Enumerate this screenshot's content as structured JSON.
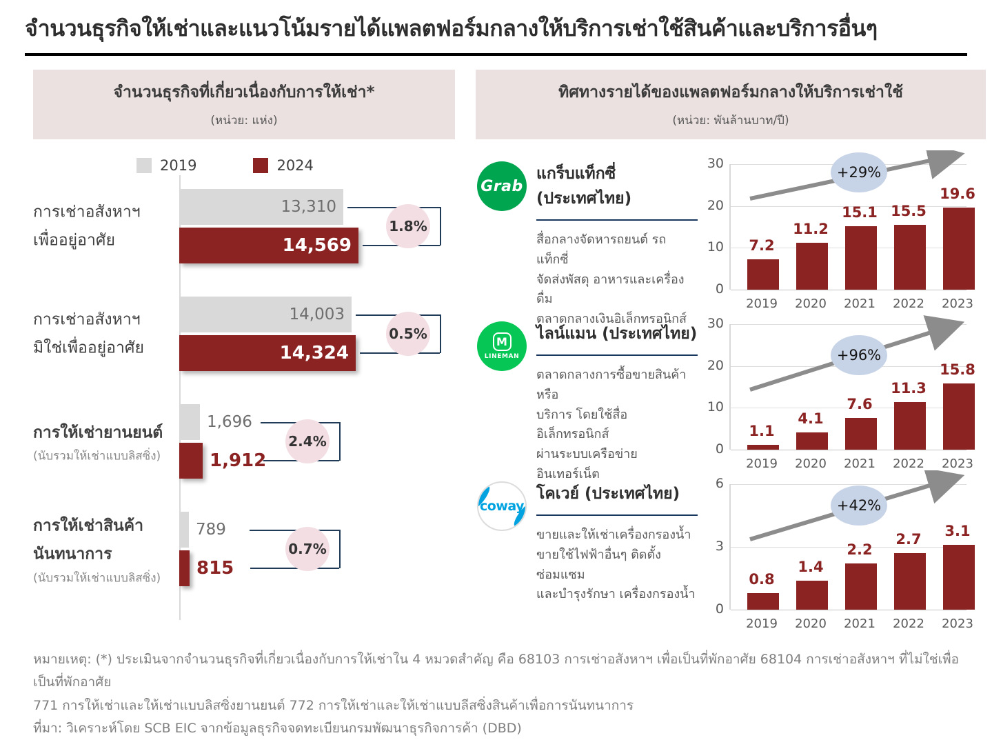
{
  "page": {
    "title": "จำนวนธุรกิจให้เช่าและแนวโน้มรายได้แพลตฟอร์มกลางให้บริการเช่าใช้สินค้าและบริการอื่นๆ"
  },
  "left_panel": {
    "header_title": "จำนวนธุรกิจที่เกี่ยวเนื่องกับการให้เช่า*",
    "header_subtitle": "(หน่วย: แห่ง)",
    "legend": [
      {
        "label": "2019",
        "color": "#d9d9d9"
      },
      {
        "label": "2024",
        "color": "#8b2323"
      }
    ]
  },
  "right_panel": {
    "header_title": "ทิศทางรายได้ของแพลตฟอร์มกลางให้บริการเช่าใช้",
    "header_subtitle": "(หน่วย: พันล้านบาท/ปี)",
    "companies": [
      {
        "logo_text": "Grab",
        "name": "แกร็บแท็กซี่ (ประเทศไทย)",
        "description_lines": [
          "สื่อกลางจัดหารถยนต์ รถแท็กซี่",
          "จัดส่งพัสดุ อาหารและเครื่องดื่ม",
          "ตลาดกลางเงินอิเล็กทรอนิกส์"
        ]
      },
      {
        "logo_m": "M",
        "logo_text": "LINEMAN",
        "name": "ไลน์แมน (ประเทศไทย)",
        "description_lines": [
          "ตลาดกลางการซื้อขายสินค้าหรือ",
          "บริการ โดยใช้สื่ออิเล็กทรอนิกส์",
          "ผ่านระบบเครือข่ายอินเทอร์เน็ต"
        ]
      },
      {
        "logo_text": "coway",
        "name": "โคเวย์ (ประเทศไทย)",
        "description_lines": [
          "ขายและให้เช่าเครื่องกรองน้ำ",
          "ขายใช้ไฟฟ้าอื่นๆ ติดตั้งซ่อมแซม",
          "และบำรุงรักษา เครื่องกรองน้ำ"
        ]
      }
    ]
  },
  "chart_data": [
    {
      "id": "rental-business-count",
      "type": "bar",
      "orientation": "horizontal",
      "title": "จำนวนธุรกิจที่เกี่ยวเนื่องกับการให้เช่า*",
      "unit": "แห่ง",
      "xlim": [
        0,
        15000
      ],
      "series_names": [
        "2019",
        "2024"
      ],
      "rows": [
        {
          "label_lines": [
            "การเช่าอสังหาฯ",
            "เพื่ออยู่อาศัย"
          ],
          "sublabel": "",
          "value_2019": 13310,
          "value_2024": 14569,
          "display_2019": "13,310",
          "display_2024": "14,569",
          "cagr": "1.8%"
        },
        {
          "label_lines": [
            "การเช่าอสังหาฯ",
            "มิใช่เพื่ออยู่อาศัย"
          ],
          "sublabel": "",
          "value_2019": 14003,
          "value_2024": 14324,
          "display_2019": "14,003",
          "display_2024": "14,324",
          "cagr": "0.5%"
        },
        {
          "label_lines": [
            "การให้เช่ายานยนต์"
          ],
          "sublabel": "(นับรวมให้เช่าแบบลิสซิ่ง)",
          "value_2019": 1696,
          "value_2024": 1912,
          "display_2019": "1,696",
          "display_2024": "1,912",
          "cagr": "2.4%"
        },
        {
          "label_lines": [
            "การให้เช่าสินค้า",
            "นันทนาการ"
          ],
          "sublabel": "(นับรวมให้เช่าแบบลิสซิ่ง)",
          "value_2019": 789,
          "value_2024": 815,
          "display_2019": "789",
          "display_2024": "815",
          "cagr": "0.7%"
        }
      ]
    },
    {
      "id": "grab-revenue",
      "type": "bar",
      "title": "แกร็บแท็กซี่ (ประเทศไทย)",
      "categories": [
        "2019",
        "2020",
        "2021",
        "2022",
        "2023"
      ],
      "values": [
        7.2,
        11.2,
        15.1,
        15.5,
        19.6
      ],
      "value_labels": [
        "7.2",
        "11.2",
        "15.1",
        "15.5",
        "19.6"
      ],
      "ylim": [
        0,
        30
      ],
      "yticks": [
        0,
        10,
        20,
        30
      ],
      "growth_badge": "+29%"
    },
    {
      "id": "lineman-revenue",
      "type": "bar",
      "title": "ไลน์แมน (ประเทศไทย)",
      "categories": [
        "2019",
        "2020",
        "2021",
        "2022",
        "2023"
      ],
      "values": [
        1.1,
        4.1,
        7.6,
        11.3,
        15.8
      ],
      "value_labels": [
        "1.1",
        "4.1",
        "7.6",
        "11.3",
        "15.8"
      ],
      "ylim": [
        0,
        30
      ],
      "yticks": [
        0,
        10,
        20,
        30
      ],
      "growth_badge": "+96%"
    },
    {
      "id": "coway-revenue",
      "type": "bar",
      "title": "โคเวย์ (ประเทศไทย)",
      "categories": [
        "2019",
        "2020",
        "2021",
        "2022",
        "2023"
      ],
      "values": [
        0.8,
        1.4,
        2.2,
        2.7,
        3.1
      ],
      "value_labels": [
        "0.8",
        "1.4",
        "2.2",
        "2.7",
        "3.1"
      ],
      "ylim": [
        0,
        6
      ],
      "yticks": [
        0,
        3,
        6
      ],
      "growth_badge": "+42%"
    }
  ],
  "footer": {
    "note_lines": [
      "หมายเหตุ: (*) ประเมินจากจำนวนธุรกิจที่เกี่ยวเนื่องกับการให้เช่าใน 4 หมวดสำคัญ คือ 68103 การเช่าอสังหาฯ เพื่อเป็นที่พักอาศัย 68104 การเช่าอสังหาฯ ที่ไม่ใช่เพื่อเป็นที่พักอาศัย",
      "771 การให้เช่าและให้เช่าแบบลิสซิ่งยานยนต์ 772 การให้เช่าและให้เช่าแบบลีสซิ่งสินค้าเพื่อการนันทนาการ"
    ],
    "source": "ที่มา: วิเคราะห์โดย SCB EIC จากข้อมูลธุรกิจจดทะเบียนกรมพัฒนาธุรกิจการค้า (DBD)"
  },
  "colors": {
    "maroon": "#8b2323",
    "gray_bar": "#d9d9d9",
    "pink_badge": "#f3dee4",
    "blue_badge": "#c7d3e6",
    "arrow_gray": "#8c8c8c",
    "connector_navy": "#1f3b57",
    "header_bg": "#ebe1e0"
  }
}
